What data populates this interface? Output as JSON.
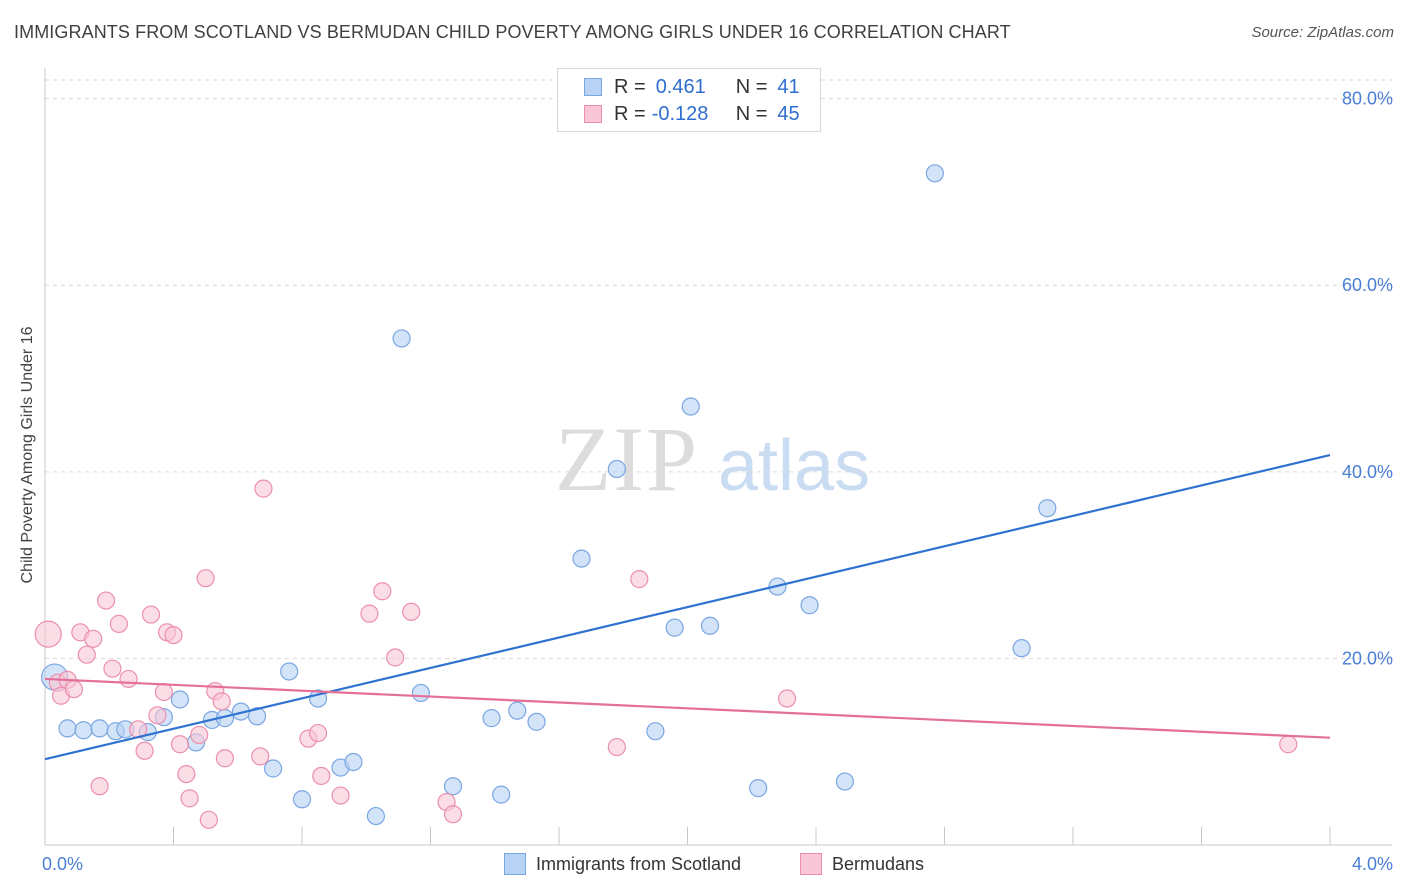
{
  "title": "IMMIGRANTS FROM SCOTLAND VS BERMUDAN CHILD POVERTY AMONG GIRLS UNDER 16 CORRELATION CHART",
  "source": "Source: ZipAtlas.com",
  "watermark": {
    "zip": "ZIP",
    "atlas": "atlas"
  },
  "colors": {
    "blue_fill": "#b8d2f3",
    "blue_stroke": "#7aa6e3",
    "blue_line": "#2f72d1",
    "pink_fill": "#f8c6d6",
    "pink_stroke": "#eb8fae",
    "pink_line": "#e46f98",
    "axis_text": "#4a7fd4",
    "grid": "#dadada"
  },
  "legend": {
    "rows": [
      {
        "r_label": "R =",
        "r_value": "0.461",
        "n_label": "N =",
        "n_value": "41"
      },
      {
        "r_label": "R =",
        "r_value": "-0.128",
        "n_label": "N =",
        "n_value": "45"
      }
    ]
  },
  "bottom_legend": {
    "series1": "Immigrants from Scotland",
    "series2": "Bermudans"
  },
  "chart_data": {
    "type": "scatter",
    "title": "IMMIGRANTS FROM SCOTLAND VS BERMUDAN CHILD POVERTY AMONG GIRLS UNDER 16 CORRELATION CHART",
    "xlabel": "",
    "ylabel": "Child Poverty Among Girls Under 16",
    "xlim": [
      0.0,
      4.0
    ],
    "ylim": [
      0.0,
      82.0
    ],
    "x_tick_labels": [
      "0.0%",
      "4.0%"
    ],
    "x_ticks": [
      0.0,
      4.0
    ],
    "y_tick_labels": [
      "20.0%",
      "40.0%",
      "60.0%",
      "80.0%"
    ],
    "y_ticks": [
      20,
      40,
      60,
      80
    ],
    "grid": true,
    "legend_position": "top-center",
    "series": [
      {
        "name": "Immigrants from Scotland",
        "color": "#b8d2f3",
        "points": [
          [
            0.03,
            18.0
          ],
          [
            0.07,
            12.5
          ],
          [
            0.12,
            12.3
          ],
          [
            0.17,
            12.5
          ],
          [
            0.22,
            12.2
          ],
          [
            0.25,
            12.4
          ],
          [
            0.32,
            12.1
          ],
          [
            0.37,
            13.7
          ],
          [
            0.42,
            15.6
          ],
          [
            0.47,
            11.0
          ],
          [
            0.52,
            13.4
          ],
          [
            0.56,
            13.6
          ],
          [
            0.61,
            14.3
          ],
          [
            0.66,
            13.8
          ],
          [
            0.71,
            8.2
          ],
          [
            0.76,
            18.6
          ],
          [
            0.8,
            4.9
          ],
          [
            0.85,
            15.7
          ],
          [
            0.92,
            8.3
          ],
          [
            0.96,
            8.9
          ],
          [
            1.03,
            3.1
          ],
          [
            1.11,
            54.3
          ],
          [
            1.17,
            16.3
          ],
          [
            1.27,
            6.3
          ],
          [
            1.39,
            13.6
          ],
          [
            1.42,
            5.4
          ],
          [
            1.47,
            14.4
          ],
          [
            1.53,
            13.2
          ],
          [
            1.67,
            30.7
          ],
          [
            1.78,
            40.3
          ],
          [
            1.9,
            12.2
          ],
          [
            1.96,
            23.3
          ],
          [
            2.01,
            47.0
          ],
          [
            2.07,
            23.5
          ],
          [
            2.28,
            27.7
          ],
          [
            2.38,
            25.7
          ],
          [
            2.22,
            6.1
          ],
          [
            2.49,
            6.8
          ],
          [
            2.77,
            72.0
          ],
          [
            3.04,
            21.1
          ],
          [
            3.12,
            36.1
          ]
        ]
      },
      {
        "name": "Bermudans",
        "color": "#f8c6d6",
        "points": [
          [
            0.01,
            22.6
          ],
          [
            0.04,
            17.4
          ],
          [
            0.05,
            16.0
          ],
          [
            0.07,
            17.7
          ],
          [
            0.09,
            16.7
          ],
          [
            0.11,
            22.8
          ],
          [
            0.13,
            20.4
          ],
          [
            0.15,
            22.1
          ],
          [
            0.17,
            6.3
          ],
          [
            0.19,
            26.2
          ],
          [
            0.21,
            18.9
          ],
          [
            0.23,
            23.7
          ],
          [
            0.26,
            17.8
          ],
          [
            0.29,
            12.4
          ],
          [
            0.31,
            10.1
          ],
          [
            0.33,
            24.7
          ],
          [
            0.35,
            13.9
          ],
          [
            0.37,
            16.4
          ],
          [
            0.38,
            22.8
          ],
          [
            0.4,
            22.5
          ],
          [
            0.42,
            10.8
          ],
          [
            0.44,
            7.6
          ],
          [
            0.45,
            5.0
          ],
          [
            0.48,
            11.8
          ],
          [
            0.5,
            28.6
          ],
          [
            0.51,
            2.7
          ],
          [
            0.53,
            16.5
          ],
          [
            0.55,
            15.4
          ],
          [
            0.56,
            9.3
          ],
          [
            0.67,
            9.5
          ],
          [
            0.68,
            38.2
          ],
          [
            0.82,
            11.4
          ],
          [
            0.85,
            12.0
          ],
          [
            0.86,
            7.4
          ],
          [
            0.92,
            5.3
          ],
          [
            1.01,
            24.8
          ],
          [
            1.05,
            27.2
          ],
          [
            1.09,
            20.1
          ],
          [
            1.14,
            25.0
          ],
          [
            1.25,
            4.6
          ],
          [
            1.27,
            3.3
          ],
          [
            1.78,
            10.5
          ],
          [
            1.85,
            28.5
          ],
          [
            2.31,
            15.7
          ],
          [
            3.87,
            10.8
          ]
        ]
      }
    ],
    "trendlines": [
      {
        "series": "Immigrants from Scotland",
        "x": [
          0.0,
          4.0
        ],
        "y": [
          9.2,
          41.8
        ]
      },
      {
        "series": "Bermudans",
        "x": [
          0.0,
          4.0
        ],
        "y": [
          17.8,
          11.5
        ]
      }
    ]
  }
}
